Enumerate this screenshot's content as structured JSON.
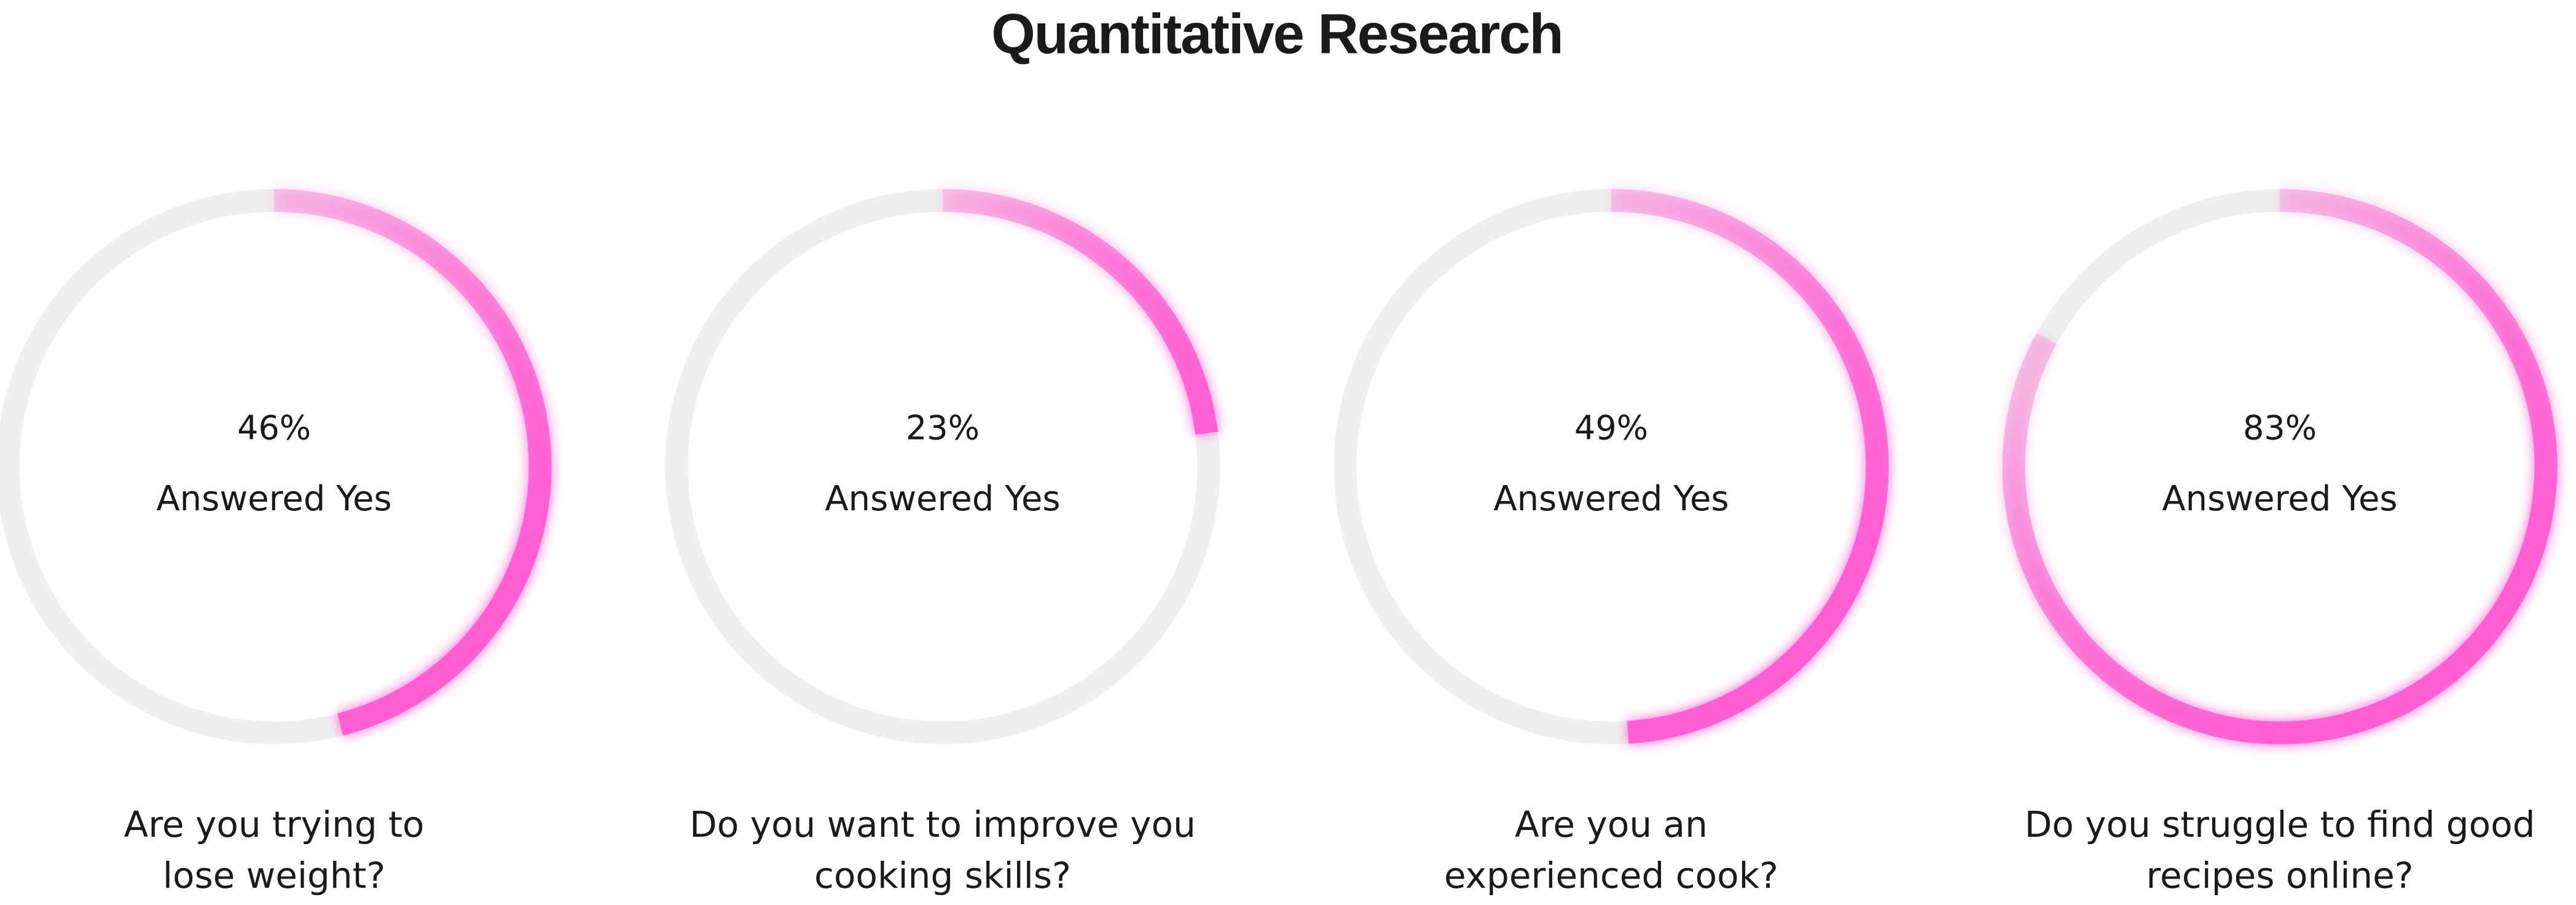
{
  "title": "Quantitative Research",
  "chart_data": [
    {
      "type": "donut",
      "values": [
        46
      ],
      "value_labels": [
        "46%"
      ],
      "ylim": [
        0,
        100
      ],
      "label": "Answered Yes",
      "question": [
        "Are you trying to",
        "lose weight?"
      ],
      "color": "#ff5fd2",
      "track_color": "#efefef"
    },
    {
      "type": "donut",
      "values": [
        23
      ],
      "value_labels": [
        "23%"
      ],
      "ylim": [
        0,
        100
      ],
      "label": "Answered Yes",
      "question": [
        "Do you want to improve you",
        "cooking skills?"
      ],
      "color": "#ff5fd2",
      "track_color": "#efefef"
    },
    {
      "type": "donut",
      "values": [
        49
      ],
      "value_labels": [
        "49%"
      ],
      "ylim": [
        0,
        100
      ],
      "label": "Answered Yes",
      "question": [
        "Are you an",
        "experienced cook?"
      ],
      "color": "#ff5fd2",
      "track_color": "#efefef"
    },
    {
      "type": "donut",
      "values": [
        83
      ],
      "value_labels": [
        "83%"
      ],
      "ylim": [
        0,
        100
      ],
      "label": "Answered Yes",
      "question": [
        "Do you struggle to find good",
        "recipes online?"
      ],
      "color": "#ff5fd2",
      "track_color": "#efefef"
    }
  ]
}
